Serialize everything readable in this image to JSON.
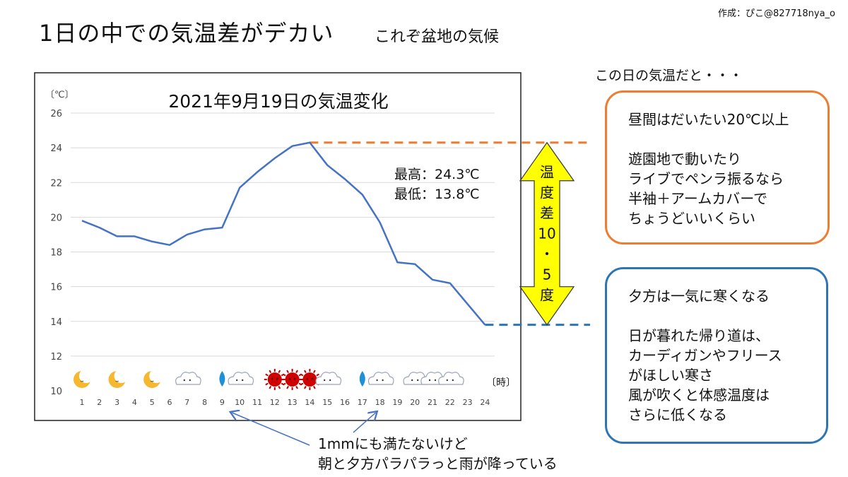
{
  "credit": "作成：ぴこ@827718nya_o",
  "header": {
    "title": "1日の中での気温差がデカい",
    "subtitle": "これぞ盆地の気候"
  },
  "chart_data": {
    "type": "line",
    "title": "2021年9月19日の気温変化",
    "ylabel": "〔℃〕",
    "xlabel": "〔時〕",
    "ylim": [
      10,
      26
    ],
    "yticks": [
      10,
      12,
      14,
      16,
      18,
      20,
      22,
      24,
      26
    ],
    "grid": true,
    "x": [
      1,
      2,
      3,
      4,
      5,
      6,
      7,
      8,
      9,
      10,
      11,
      12,
      13,
      14,
      15,
      16,
      17,
      18,
      19,
      20,
      21,
      22,
      23,
      24
    ],
    "series": [
      {
        "color": "#4472c4",
        "values": [
          19.8,
          19.4,
          18.9,
          18.9,
          18.6,
          18.4,
          19.0,
          19.3,
          19.4,
          21.7,
          22.6,
          23.4,
          24.1,
          24.3,
          23.0,
          22.2,
          21.3,
          19.7,
          17.4,
          17.3,
          16.4,
          16.2,
          15.0,
          13.8
        ]
      }
    ],
    "stats": {
      "max_label": "最高：24.3℃",
      "min_label": "最低：13.8℃",
      "max": 24.3,
      "min": 13.8
    },
    "weather_icons": {
      "1": "moon-icon",
      "3": "moon-icon",
      "5": "moon-icon",
      "7": "cloud-icon",
      "9": "raindrop-icon",
      "10": "cloud-icon",
      "12": "sun-icon",
      "13": "sun-icon",
      "14": "sun-icon",
      "15": "cloud-icon",
      "17": "raindrop-icon",
      "18": "cloud-icon",
      "20": "cloud-icon",
      "21": "cloud-icon",
      "22": "cloud-icon"
    },
    "diff": {
      "label_chars": [
        "温",
        "度",
        "差",
        "10",
        "・",
        "5",
        "度"
      ],
      "value": 10.5,
      "arrow_color": "#ffff00"
    },
    "ref_lines": [
      {
        "value": 24.3,
        "color": "#ed7d31"
      },
      {
        "value": 13.8,
        "color": "#2e75b6"
      }
    ]
  },
  "right_panel": {
    "heading": "この日の気温だと・・・",
    "orange_box": {
      "line1": "昼間はだいたい20℃以上",
      "para2": "遊園地で動いたり\nライブでペンラ振るなら\n半袖＋アームカバーで\nちょうどいいくらい"
    },
    "blue_box": {
      "line1": "夕方は一気に寒くなる",
      "para2": "日が暮れた帰り道は、\nカーディガンやフリース\nがほしい寒さ\n風が吹くと体感温度は\nさらに低くなる"
    }
  },
  "annotation": {
    "line1": "1mmにも満たないけど",
    "line2": "朝と夕方パラパラっと雨が降っている",
    "arrow_targets": [
      9,
      18
    ]
  }
}
